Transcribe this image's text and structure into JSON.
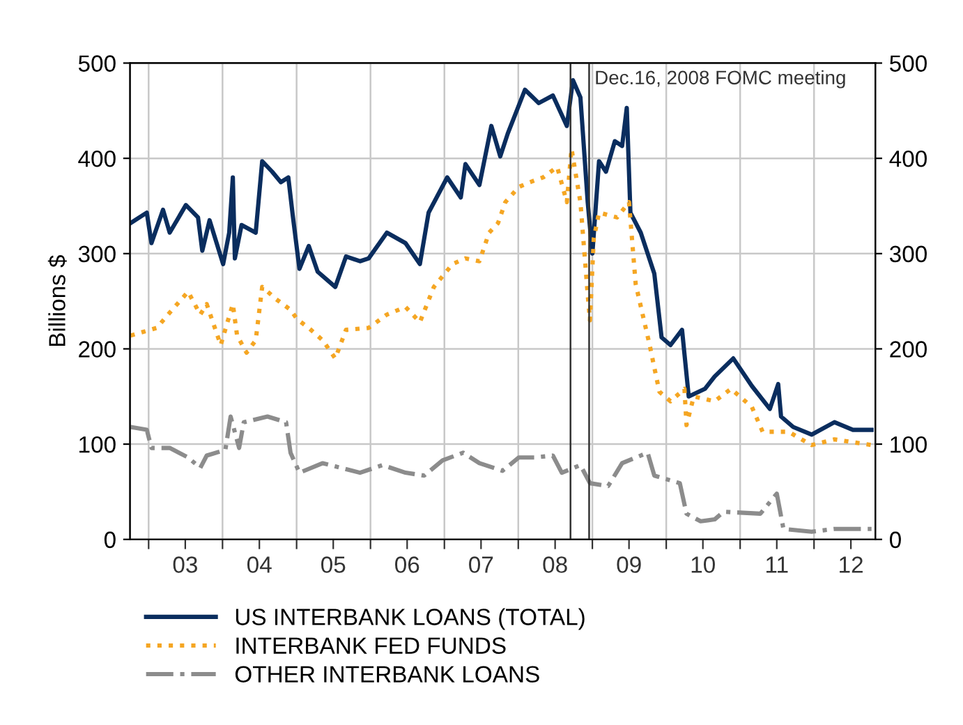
{
  "chart_data": {
    "type": "line",
    "ylabel": "Billions $",
    "xlim": [
      "2002-10-01",
      "2012-10-30"
    ],
    "xticks": [
      {
        "value": "2003-01-01",
        "label": null
      },
      {
        "value": "2003-07-01",
        "label": "03"
      },
      {
        "value": "2004-01-01",
        "label": null
      },
      {
        "value": "2004-07-01",
        "label": "04"
      },
      {
        "value": "2005-01-01",
        "label": null
      },
      {
        "value": "2005-07-01",
        "label": "05"
      },
      {
        "value": "2006-01-01",
        "label": null
      },
      {
        "value": "2006-07-01",
        "label": "06"
      },
      {
        "value": "2007-01-01",
        "label": null
      },
      {
        "value": "2007-07-01",
        "label": "07"
      },
      {
        "value": "2008-01-01",
        "label": null
      },
      {
        "value": "2008-07-01",
        "label": "08"
      },
      {
        "value": "2009-01-01",
        "label": null
      },
      {
        "value": "2009-07-01",
        "label": "09"
      },
      {
        "value": "2010-01-01",
        "label": null
      },
      {
        "value": "2010-07-01",
        "label": "10"
      },
      {
        "value": "2011-01-01",
        "label": null
      },
      {
        "value": "2011-07-01",
        "label": "11"
      },
      {
        "value": "2012-01-01",
        "label": null
      },
      {
        "value": "2012-07-01",
        "label": "12"
      }
    ],
    "ylim": [
      0,
      500
    ],
    "yticks": [
      0,
      100,
      200,
      300,
      400,
      500
    ],
    "y2lim": [
      0,
      500
    ],
    "y2ticks": [
      0,
      100,
      200,
      300,
      400,
      500
    ],
    "grid": true,
    "legend": "bottom",
    "marker": "none",
    "ref_lines": [
      {
        "axis": "x",
        "value": "2008-09-15",
        "label": null,
        "color": "#333333"
      },
      {
        "axis": "x",
        "value": "2008-12-16",
        "label": "Dec.16, 2008 FOMC meeting",
        "color": "#333333"
      }
    ],
    "series": [
      {
        "name": "US INTERBANK LOANS (TOTAL)",
        "color": "#0a2d5e",
        "line_style": "solid",
        "x": [
          "2002-10-04",
          "2002-12-23",
          "2003-01-15",
          "2003-03-13",
          "2003-04-15",
          "2003-07-04",
          "2003-09-02",
          "2003-09-23",
          "2003-10-29",
          "2004-01-04",
          "2004-02-03",
          "2004-02-21",
          "2004-03-02",
          "2004-04-04",
          "2004-06-13",
          "2004-07-15",
          "2004-09-02",
          "2004-10-15",
          "2004-11-21",
          "2004-12-13",
          "2005-01-15",
          "2005-03-02",
          "2005-04-15",
          "2005-07-11",
          "2005-09-02",
          "2005-11-10",
          "2005-12-23",
          "2006-03-23",
          "2006-06-23",
          "2006-09-02",
          "2006-10-15",
          "2007-01-15",
          "2007-03-23",
          "2007-04-15",
          "2007-06-23",
          "2007-08-21",
          "2007-10-04",
          "2007-11-10",
          "2008-02-03",
          "2008-04-11",
          "2008-06-20",
          "2008-08-28",
          "2008-09-27",
          "2008-11-03",
          "2008-12-09",
          "2009-01-01",
          "2009-02-03",
          "2009-03-09",
          "2009-04-22",
          "2009-05-28",
          "2009-06-20",
          "2009-07-08",
          "2009-08-28",
          "2009-11-03",
          "2009-12-09",
          "2010-01-22",
          "2010-03-20",
          "2010-04-22",
          "2010-07-11",
          "2010-08-28",
          "2010-11-28",
          "2011-02-28",
          "2011-05-28",
          "2011-07-08",
          "2011-07-22",
          "2011-09-20",
          "2011-12-20",
          "2012-04-11",
          "2012-07-11",
          "2012-10-11"
        ],
        "values": [
          332,
          343,
          311,
          346,
          322,
          351,
          338,
          303,
          335,
          289,
          322,
          380,
          295,
          330,
          322,
          397,
          386,
          375,
          380,
          340,
          284,
          308,
          281,
          265,
          297,
          292,
          295,
          322,
          311,
          289,
          343,
          380,
          359,
          394,
          372,
          434,
          402,
          426,
          472,
          458,
          466,
          434,
          482,
          464,
          354,
          300,
          397,
          386,
          418,
          413,
          453,
          343,
          322,
          279,
          212,
          204,
          220,
          150,
          158,
          171,
          190,
          161,
          137,
          163,
          129,
          118,
          110,
          123,
          115,
          115
        ]
      },
      {
        "name": "INTERBANK FED FUNDS",
        "color": "#f5a623",
        "line_style": "dotted",
        "x": [
          "2002-10-04",
          "2003-02-10",
          "2003-04-15",
          "2003-07-15",
          "2003-09-13",
          "2003-10-15",
          "2003-12-23",
          "2004-02-21",
          "2004-03-13",
          "2004-04-29",
          "2004-06-13",
          "2004-07-15",
          "2004-09-23",
          "2004-12-02",
          "2005-01-04",
          "2005-03-02",
          "2005-05-10",
          "2005-07-11",
          "2005-09-02",
          "2005-12-23",
          "2006-03-23",
          "2006-06-23",
          "2006-09-02",
          "2006-11-10",
          "2007-02-10",
          "2007-04-15",
          "2007-06-23",
          "2007-08-10",
          "2007-09-23",
          "2007-10-29",
          "2008-01-04",
          "2008-02-28",
          "2008-05-03",
          "2008-07-11",
          "2008-08-28",
          "2008-09-20",
          "2008-11-03",
          "2008-12-09",
          "2008-12-20",
          "2009-01-08",
          "2009-02-03",
          "2009-05-03",
          "2009-07-01",
          "2009-08-03",
          "2009-10-11",
          "2009-11-28",
          "2010-01-22",
          "2010-04-01",
          "2010-04-11",
          "2010-05-17",
          "2010-08-28",
          "2010-11-17",
          "2011-02-28",
          "2011-04-22",
          "2011-08-28",
          "2011-12-20",
          "2012-04-11",
          "2012-10-11"
        ],
        "values": [
          214,
          222,
          238,
          260,
          236,
          247,
          204,
          247,
          214,
          196,
          209,
          265,
          252,
          241,
          231,
          222,
          209,
          190,
          220,
          222,
          236,
          244,
          228,
          265,
          289,
          295,
          292,
          322,
          332,
          354,
          370,
          375,
          380,
          391,
          354,
          410,
          354,
          257,
          230,
          316,
          343,
          338,
          354,
          268,
          204,
          155,
          145,
          158,
          120,
          150,
          145,
          158,
          139,
          113,
          113,
          99,
          105,
          99
        ]
      },
      {
        "name": "OTHER INTERBANK LOANS",
        "color": "#8c8c8c",
        "line_style": "dashdot",
        "x": [
          "2002-10-04",
          "2002-12-23",
          "2003-01-15",
          "2003-04-15",
          "2003-07-15",
          "2003-09-13",
          "2003-10-15",
          "2004-01-15",
          "2004-02-10",
          "2004-03-23",
          "2004-04-15",
          "2004-08-10",
          "2004-11-10",
          "2004-12-02",
          "2005-01-15",
          "2005-05-10",
          "2005-11-10",
          "2006-03-02",
          "2006-06-23",
          "2006-09-23",
          "2006-12-23",
          "2007-04-04",
          "2007-06-23",
          "2007-10-15",
          "2008-01-04",
          "2008-03-20",
          "2008-06-20",
          "2008-08-03",
          "2008-11-03",
          "2008-12-20",
          "2009-03-20",
          "2009-05-28",
          "2009-10-01",
          "2009-11-03",
          "2010-03-09",
          "2010-04-11",
          "2010-06-20",
          "2010-08-28",
          "2010-10-11",
          "2011-04-11",
          "2011-07-01",
          "2011-08-03",
          "2011-12-20",
          "2012-04-11",
          "2012-10-11"
        ],
        "values": [
          118,
          115,
          96,
          96,
          86,
          75,
          88,
          94,
          129,
          96,
          123,
          129,
          123,
          91,
          70,
          80,
          70,
          78,
          70,
          67,
          83,
          91,
          80,
          72,
          86,
          86,
          88,
          70,
          78,
          59,
          56,
          80,
          91,
          67,
          59,
          27,
          19,
          21,
          29,
          27,
          48,
          11,
          8,
          11,
          11
        ]
      }
    ]
  }
}
